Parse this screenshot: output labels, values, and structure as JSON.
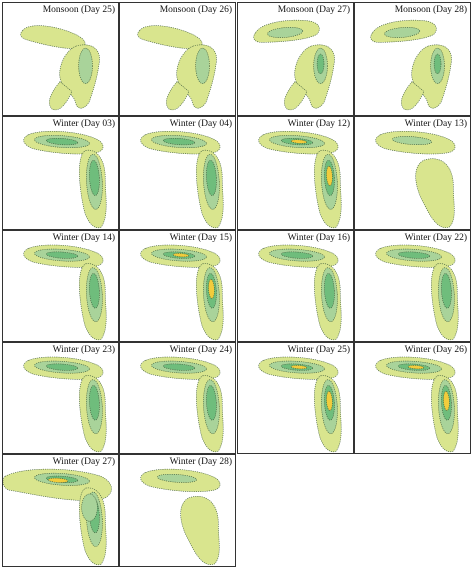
{
  "figure": {
    "panels": [
      {
        "label": "Monsoon (Day 25)",
        "pattern": "monsoon"
      },
      {
        "label": "Monsoon (Day 26)",
        "pattern": "monsoon"
      },
      {
        "label": "Monsoon (Day 27)",
        "pattern": "monsoon-b"
      },
      {
        "label": "Monsoon (Day 28)",
        "pattern": "monsoon-b"
      },
      {
        "label": "Winter (Day 03)",
        "pattern": "winter"
      },
      {
        "label": "Winter (Day 04)",
        "pattern": "winter"
      },
      {
        "label": "Winter (Day 12)",
        "pattern": "winter-hot"
      },
      {
        "label": "Winter (Day 13)",
        "pattern": "winter-light"
      },
      {
        "label": "Winter (Day 14)",
        "pattern": "winter"
      },
      {
        "label": "Winter (Day 15)",
        "pattern": "winter-hot"
      },
      {
        "label": "Winter (Day 16)",
        "pattern": "winter"
      },
      {
        "label": "Winter (Day 22)",
        "pattern": "winter"
      },
      {
        "label": "Winter (Day 23)",
        "pattern": "winter"
      },
      {
        "label": "Winter (Day 24)",
        "pattern": "winter"
      },
      {
        "label": "Winter (Day 25)",
        "pattern": "winter-hot"
      },
      {
        "label": "Winter (Day 26)",
        "pattern": "winter-hot"
      },
      {
        "label": "Winter (Day 27)",
        "pattern": "winter-wide"
      },
      {
        "label": "Winter (Day 28)",
        "pattern": "winter-light"
      }
    ]
  },
  "colors": {
    "outer": "#d9e58e",
    "mid": "#a9d39a",
    "inner": "#6fbd7c",
    "core": "#f2cc3c",
    "line": "#3d5a3a",
    "border": "#333333"
  }
}
